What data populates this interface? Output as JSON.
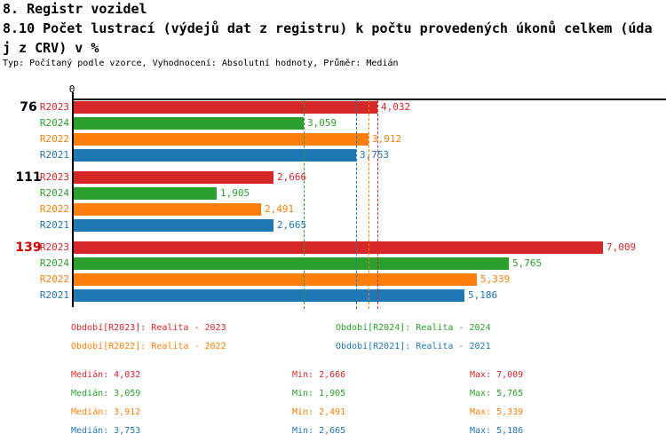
{
  "header": {
    "title": "8. Registr vozidel",
    "subtitle_line1": "8.10 Počet lustrací (výdejů dat z registru) k počtu provedených úkonů celkem (úda",
    "subtitle_line2": "j z CRV) v %",
    "meta": "Typ: Počítaný podle vzorce, Vyhodnocení: Absolutní hodnoty, Průměr: Medián"
  },
  "chart_data": {
    "type": "bar",
    "orientation": "horizontal",
    "title": "8. Registr vozidel",
    "subtitle": "8.10 Počet lustrací (výdejů dat z registru) k počtu provedených úkonů celkem (údaj z CRV) v %",
    "x_axis": {
      "origin_label": "0",
      "xlim": [
        0,
        7840
      ],
      "gridlines": false
    },
    "average_type": "Medián",
    "groups": [
      {
        "label": "76",
        "label_color": "#000000"
      },
      {
        "label": "111",
        "label_color": "#000000"
      },
      {
        "label": "139",
        "label_color": "#cc0000"
      }
    ],
    "series": [
      {
        "name": "R2023",
        "color": "#d62728",
        "values": [
          4032,
          2666,
          7009
        ],
        "values_fmt": [
          "4,032",
          "2,666",
          "7,009"
        ],
        "median": 4032,
        "stats": {
          "median": "4,032",
          "min": "2,666",
          "max": "7,009"
        },
        "legend": "Období[R2023]: Realita - 2023"
      },
      {
        "name": "R2024",
        "color": "#2ca02c",
        "values": [
          3059,
          1905,
          5765
        ],
        "values_fmt": [
          "3,059",
          "1,905",
          "5,765"
        ],
        "median": 3059,
        "stats": {
          "median": "3,059",
          "min": "1,905",
          "max": "5,765"
        },
        "legend": "Období[R2024]: Realita - 2024"
      },
      {
        "name": "R2022",
        "color": "#ff7f0e",
        "values": [
          3912,
          2491,
          5339
        ],
        "values_fmt": [
          "3,912",
          "2,491",
          "5,339"
        ],
        "median": 3912,
        "stats": {
          "median": "3,912",
          "min": "2,491",
          "max": "5,339"
        },
        "legend": "Období[R2022]: Realita - 2022"
      },
      {
        "name": "R2021",
        "color": "#1f77b4",
        "values": [
          3753,
          2665,
          5186
        ],
        "values_fmt": [
          "3,753",
          "2,665",
          "5,186"
        ],
        "median": 3753,
        "stats": {
          "median": "3,753",
          "min": "2,665",
          "max": "5,186"
        },
        "legend": "Období[R2021]: Realita - 2021"
      }
    ],
    "stat_labels": {
      "median": "Medián",
      "min": "Min",
      "max": "Max"
    }
  }
}
